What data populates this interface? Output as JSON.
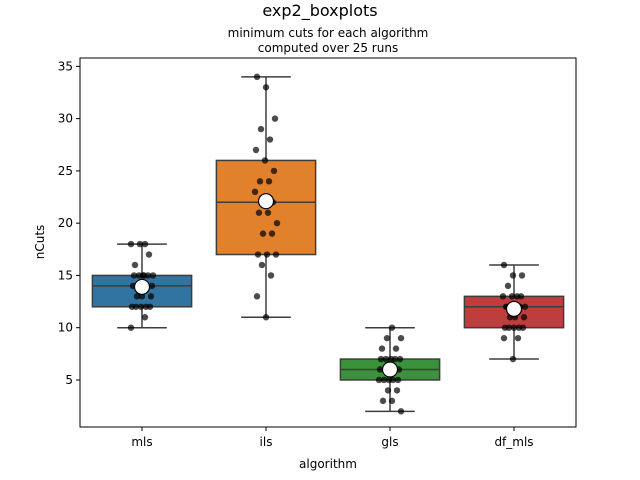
{
  "chart_data": {
    "type": "box",
    "title": "exp2_boxplots",
    "subtitle_lines": [
      "minimum cuts for each algorithm",
      "computed over 25 runs"
    ],
    "xlabel": "algorithm",
    "ylabel": "nCuts",
    "ylim": [
      0.5,
      35.8
    ],
    "yticks": [
      5,
      10,
      15,
      20,
      25,
      30,
      35
    ],
    "grid": false,
    "categories": [
      "mls",
      "ils",
      "gls",
      "df_mls"
    ],
    "boxes": [
      {
        "category": "mls",
        "color": "#3274a1",
        "whisker_low": 10,
        "q1": 12,
        "median": 14,
        "q3": 15,
        "whisker_high": 18,
        "mean": 13.9,
        "points": [
          10,
          11,
          12,
          12,
          12,
          12,
          12,
          13,
          13,
          13,
          14,
          14,
          14,
          14,
          15,
          15,
          15,
          15,
          15,
          15,
          16,
          17,
          18,
          18,
          18
        ]
      },
      {
        "category": "ils",
        "color": "#e1812c",
        "whisker_low": 11,
        "q1": 17,
        "median": 22,
        "q3": 26,
        "whisker_high": 34,
        "mean": 22.1,
        "points": [
          11,
          13,
          15,
          16,
          17,
          17,
          17,
          19,
          19,
          20,
          21,
          21,
          22,
          22,
          23,
          24,
          24,
          25,
          26,
          27,
          28,
          29,
          30,
          33,
          34
        ]
      },
      {
        "category": "gls",
        "color": "#3a923a",
        "whisker_low": 2,
        "q1": 5,
        "median": 6,
        "q3": 7,
        "whisker_high": 10,
        "mean": 6.0,
        "points": [
          2,
          3,
          3,
          4,
          4,
          5,
          5,
          5,
          5,
          5,
          6,
          6,
          6,
          6,
          6,
          7,
          7,
          7,
          7,
          7,
          8,
          8,
          9,
          9,
          10
        ]
      },
      {
        "category": "df_mls",
        "color": "#c03d3e",
        "whisker_low": 7,
        "q1": 10,
        "median": 12,
        "q3": 13,
        "whisker_high": 16,
        "mean": 11.8,
        "points": [
          7,
          9,
          9,
          10,
          10,
          10,
          10,
          10,
          11,
          11,
          11,
          12,
          12,
          12,
          12,
          12,
          12,
          13,
          13,
          13,
          13,
          14,
          15,
          15,
          16
        ]
      }
    ]
  }
}
